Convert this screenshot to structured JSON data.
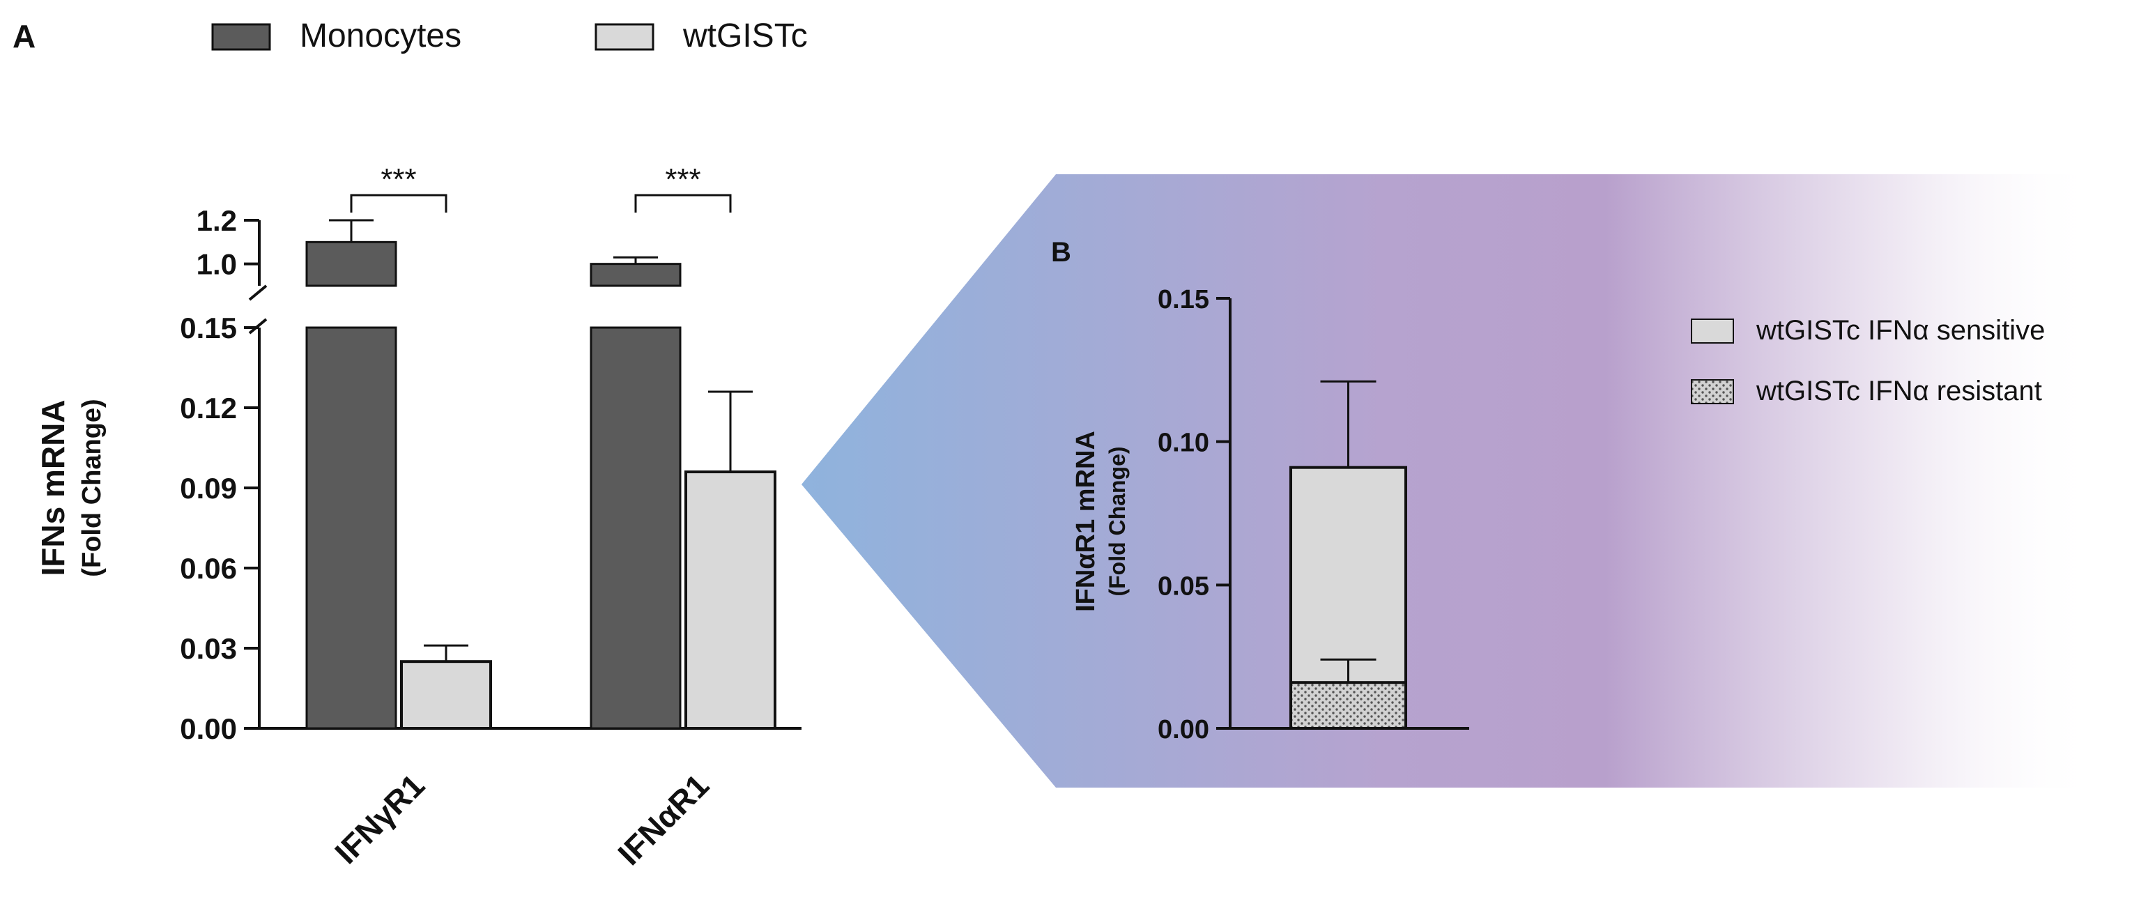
{
  "legend": {
    "monocytes": "Monocytes",
    "wtgistc": "wtGISTc"
  },
  "colors": {
    "monocytes": "#5b5b5b",
    "wtgistc": "#d9d9d9",
    "resistant": "#c9c9c9",
    "axis": "#111111",
    "arrow_left": "#8fb3dd",
    "arrow_mid": "#b7a0cd"
  },
  "panel_a": {
    "label": "A",
    "ylabel": "IFNs mRNA",
    "ylabel_sub": "(Fold Change)"
  },
  "panel_b": {
    "label": "B",
    "ylabel": "IFNαR1 mRNA",
    "ylabel_sub": "(Fold Change)",
    "legend_sensitive": "wtGISTc IFNα sensitive",
    "legend_resistant": "wtGISTc IFNα resistant"
  },
  "chart_data": [
    {
      "type": "bar",
      "panel": "A",
      "categories": [
        "IFNγR1",
        "IFNαR1"
      ],
      "series": [
        {
          "name": "Monocytes",
          "values": [
            1.1,
            1.0
          ],
          "errors": [
            0.1,
            0.03
          ]
        },
        {
          "name": "wtGISTc",
          "values": [
            0.025,
            0.096
          ],
          "errors": [
            0.006,
            0.03
          ]
        }
      ],
      "axis_break": {
        "lower": [
          0,
          0.15
        ],
        "upper": [
          0.9,
          1.2
        ]
      },
      "yticks_lower": [
        "0.00",
        "0.03",
        "0.06",
        "0.09",
        "0.12",
        "0.15"
      ],
      "yticks_upper": [
        "1.0",
        "1.2"
      ],
      "significance": [
        "***",
        "***"
      ],
      "xlabel": "",
      "ylabel": "IFNs mRNA (Fold Change)"
    },
    {
      "type": "bar",
      "panel": "B",
      "stacked": true,
      "categories": [
        ""
      ],
      "series": [
        {
          "name": "wtGISTc IFNα sensitive",
          "values": [
            0.091
          ],
          "errors": [
            0.03
          ]
        },
        {
          "name": "wtGISTc IFNα resistant",
          "values": [
            0.016
          ],
          "errors": [
            0.008
          ]
        }
      ],
      "ylim": [
        0,
        0.15
      ],
      "yticks": [
        "0.00",
        "0.05",
        "0.10",
        "0.15"
      ],
      "ylabel": "IFNαR1 mRNA (Fold Change)"
    }
  ]
}
